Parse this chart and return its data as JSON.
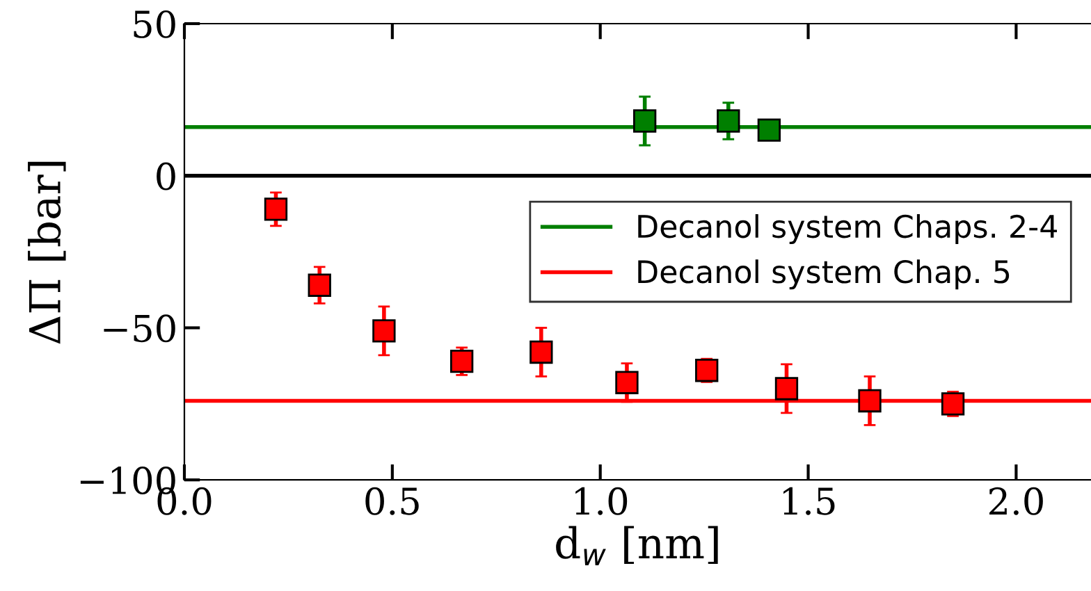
{
  "chart_data": {
    "type": "scatter",
    "xlabel": "d$_{w}$ [nm]",
    "ylabel": "ΔΠ [bar]",
    "xlim": [
      0,
      2.18
    ],
    "xticks": [
      {
        "value": 0,
        "label": "0.0"
      },
      0.5,
      {
        "value": 1,
        "label": "1.0"
      },
      1.5,
      {
        "value": 2,
        "label": "2.0"
      }
    ],
    "ylim": [
      -100,
      50
    ],
    "yticks": [
      {
        "value": -100,
        "label": "−100"
      },
      {
        "value": -50,
        "label": "−50"
      },
      0,
      50
    ],
    "marker": "square",
    "grid": false,
    "legend": "right",
    "series": [
      {
        "color": "#007f00",
        "x": [
          1.107,
          1.308,
          1.406
        ],
        "values": [
          18,
          18,
          15
        ],
        "errors": [
          8,
          6,
          null
        ]
      },
      {
        "color": "#ff0000",
        "x": [
          0.22,
          0.325,
          0.48,
          0.667,
          0.858,
          1.064,
          1.256,
          1.448,
          1.648,
          1.848
        ],
        "values": [
          -11,
          -36,
          -51,
          -61,
          -58,
          -68,
          -64,
          -70,
          -74,
          -75
        ],
        "errors": [
          5.5,
          6,
          8,
          4.5,
          8,
          6.3,
          3.8,
          8,
          8,
          4
        ]
      }
    ],
    "ref_lines": [
      {
        "axis": "y",
        "value": 0,
        "color": "#000000"
      },
      {
        "axis": "y",
        "value": 16,
        "label": "Decanol system Chaps. 2-4",
        "color": "#007f00"
      },
      {
        "axis": "y",
        "value": -74,
        "label": "Decanol system Chap. 5",
        "color": "#ff0000"
      }
    ]
  }
}
